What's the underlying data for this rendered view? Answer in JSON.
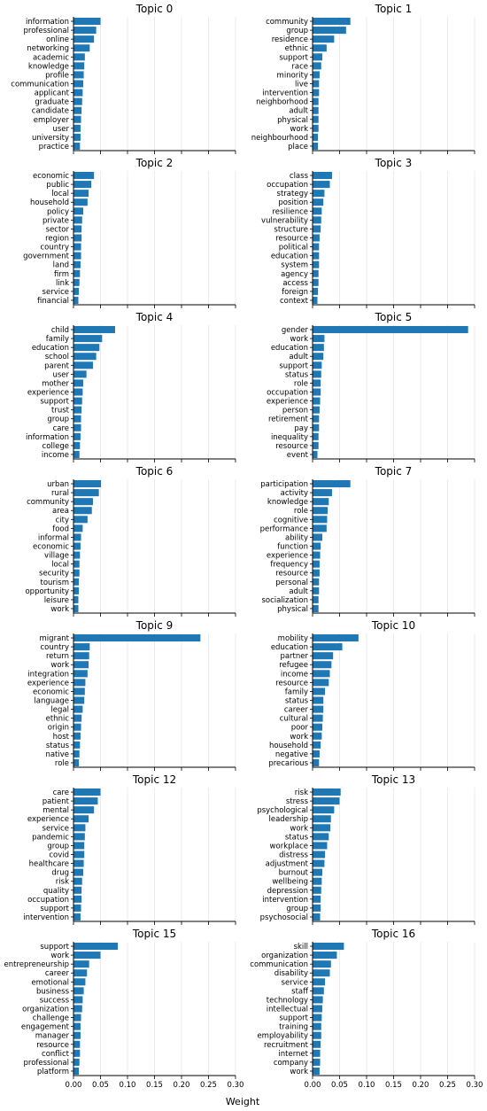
{
  "figure": {
    "xlabel": "Weight"
  },
  "chart_data": [
    {
      "type": "bar",
      "orientation": "horizontal",
      "title": "Topic 0",
      "xlim": [
        0,
        0.3
      ],
      "xticks": [
        0,
        0.05,
        0.1,
        0.15,
        0.2,
        0.25,
        0.3
      ],
      "grid": "x",
      "categories": [
        "information",
        "professional",
        "online",
        "networking",
        "academic",
        "knowledge",
        "profile",
        "communication",
        "applicant",
        "graduate",
        "candidate",
        "employer",
        "user",
        "university",
        "practice"
      ],
      "values": [
        0.05,
        0.042,
        0.038,
        0.03,
        0.021,
        0.02,
        0.019,
        0.018,
        0.017,
        0.016,
        0.015,
        0.014,
        0.013,
        0.013,
        0.012
      ]
    },
    {
      "type": "bar",
      "orientation": "horizontal",
      "title": "Topic 1",
      "xlim": [
        0,
        0.3
      ],
      "xticks": [
        0,
        0.05,
        0.1,
        0.15,
        0.2,
        0.25,
        0.3
      ],
      "grid": "x",
      "categories": [
        "community",
        "group",
        "residence",
        "ethnic",
        "support",
        "race",
        "minority",
        "live",
        "intervention",
        "neighborhood",
        "adult",
        "physical",
        "work",
        "neighbourhood",
        "place"
      ],
      "values": [
        0.07,
        0.062,
        0.04,
        0.026,
        0.018,
        0.016,
        0.013,
        0.012,
        0.012,
        0.011,
        0.011,
        0.011,
        0.011,
        0.01,
        0.01
      ]
    },
    {
      "type": "bar",
      "orientation": "horizontal",
      "title": "Topic 2",
      "xlim": [
        0,
        0.3
      ],
      "xticks": [
        0,
        0.05,
        0.1,
        0.15,
        0.2,
        0.25,
        0.3
      ],
      "grid": "x",
      "categories": [
        "economic",
        "public",
        "local",
        "household",
        "policy",
        "private",
        "sector",
        "region",
        "country",
        "government",
        "land",
        "firm",
        "link",
        "service",
        "financial"
      ],
      "values": [
        0.038,
        0.033,
        0.028,
        0.026,
        0.018,
        0.016,
        0.015,
        0.015,
        0.014,
        0.014,
        0.013,
        0.012,
        0.011,
        0.01,
        0.009
      ]
    },
    {
      "type": "bar",
      "orientation": "horizontal",
      "title": "Topic 3",
      "xlim": [
        0,
        0.3
      ],
      "xticks": [
        0,
        0.05,
        0.1,
        0.15,
        0.2,
        0.25,
        0.3
      ],
      "grid": "x",
      "categories": [
        "class",
        "occupation",
        "strategy",
        "position",
        "resilience",
        "vulnerability",
        "structure",
        "resource",
        "political",
        "education",
        "system",
        "agency",
        "access",
        "foreign",
        "context"
      ],
      "values": [
        0.036,
        0.032,
        0.022,
        0.02,
        0.017,
        0.016,
        0.015,
        0.013,
        0.012,
        0.012,
        0.012,
        0.011,
        0.011,
        0.01,
        0.009
      ]
    },
    {
      "type": "bar",
      "orientation": "horizontal",
      "title": "Topic 4",
      "xlim": [
        0,
        0.3
      ],
      "xticks": [
        0,
        0.05,
        0.1,
        0.15,
        0.2,
        0.25,
        0.3
      ],
      "grid": "x",
      "categories": [
        "child",
        "family",
        "education",
        "school",
        "parent",
        "user",
        "mother",
        "experience",
        "support",
        "trust",
        "group",
        "care",
        "information",
        "college",
        "income"
      ],
      "values": [
        0.077,
        0.053,
        0.048,
        0.042,
        0.036,
        0.024,
        0.018,
        0.017,
        0.016,
        0.015,
        0.014,
        0.014,
        0.013,
        0.012,
        0.011
      ]
    },
    {
      "type": "bar",
      "orientation": "horizontal",
      "title": "Topic 5",
      "xlim": [
        0,
        0.3
      ],
      "xticks": [
        0,
        0.05,
        0.1,
        0.15,
        0.2,
        0.25,
        0.3
      ],
      "grid": "x",
      "categories": [
        "gender",
        "work",
        "education",
        "adult",
        "support",
        "status",
        "role",
        "occupation",
        "experience",
        "person",
        "retirement",
        "pay",
        "inequality",
        "resource",
        "event"
      ],
      "values": [
        0.288,
        0.022,
        0.021,
        0.02,
        0.017,
        0.016,
        0.015,
        0.015,
        0.014,
        0.013,
        0.012,
        0.012,
        0.011,
        0.011,
        0.009
      ]
    },
    {
      "type": "bar",
      "orientation": "horizontal",
      "title": "Topic 6",
      "xlim": [
        0,
        0.3
      ],
      "xticks": [
        0,
        0.05,
        0.1,
        0.15,
        0.2,
        0.25,
        0.3
      ],
      "grid": "x",
      "categories": [
        "urban",
        "rural",
        "community",
        "area",
        "city",
        "food",
        "informal",
        "economic",
        "village",
        "local",
        "security",
        "tourism",
        "opportunity",
        "leisure",
        "work"
      ],
      "values": [
        0.051,
        0.047,
        0.036,
        0.034,
        0.026,
        0.017,
        0.014,
        0.013,
        0.012,
        0.011,
        0.011,
        0.01,
        0.01,
        0.009,
        0.009
      ]
    },
    {
      "type": "bar",
      "orientation": "horizontal",
      "title": "Topic 7",
      "xlim": [
        0,
        0.3
      ],
      "xticks": [
        0,
        0.05,
        0.1,
        0.15,
        0.2,
        0.25,
        0.3
      ],
      "grid": "x",
      "categories": [
        "participation",
        "activity",
        "knowledge",
        "role",
        "cognitive",
        "performance",
        "ability",
        "function",
        "experience",
        "frequency",
        "resource",
        "personal",
        "adult",
        "socialization",
        "physical"
      ],
      "values": [
        0.07,
        0.036,
        0.03,
        0.028,
        0.027,
        0.026,
        0.018,
        0.015,
        0.014,
        0.013,
        0.013,
        0.012,
        0.012,
        0.011,
        0.011
      ]
    },
    {
      "type": "bar",
      "orientation": "horizontal",
      "title": "Topic 9",
      "xlim": [
        0,
        0.3
      ],
      "xticks": [
        0,
        0.05,
        0.1,
        0.15,
        0.2,
        0.25,
        0.3
      ],
      "grid": "x",
      "categories": [
        "migrant",
        "country",
        "return",
        "work",
        "integration",
        "experience",
        "economic",
        "language",
        "legal",
        "ethnic",
        "origin",
        "host",
        "status",
        "native",
        "role"
      ],
      "values": [
        0.235,
        0.03,
        0.029,
        0.028,
        0.026,
        0.022,
        0.021,
        0.02,
        0.017,
        0.015,
        0.014,
        0.013,
        0.012,
        0.011,
        0.01
      ]
    },
    {
      "type": "bar",
      "orientation": "horizontal",
      "title": "Topic 10",
      "xlim": [
        0,
        0.3
      ],
      "xticks": [
        0,
        0.05,
        0.1,
        0.15,
        0.2,
        0.25,
        0.3
      ],
      "grid": "x",
      "categories": [
        "mobility",
        "education",
        "partner",
        "refugee",
        "income",
        "resource",
        "family",
        "status",
        "career",
        "cultural",
        "poor",
        "work",
        "household",
        "negative",
        "precarious"
      ],
      "values": [
        0.085,
        0.055,
        0.038,
        0.035,
        0.032,
        0.03,
        0.023,
        0.02,
        0.02,
        0.019,
        0.018,
        0.017,
        0.015,
        0.013,
        0.012
      ]
    },
    {
      "type": "bar",
      "orientation": "horizontal",
      "title": "Topic 12",
      "xlim": [
        0,
        0.3
      ],
      "xticks": [
        0,
        0.05,
        0.1,
        0.15,
        0.2,
        0.25,
        0.3
      ],
      "grid": "x",
      "categories": [
        "care",
        "patient",
        "mental",
        "experience",
        "service",
        "pandemic",
        "group",
        "covid",
        "healthcare",
        "drug",
        "risk",
        "quality",
        "occupation",
        "support",
        "intervention"
      ],
      "values": [
        0.05,
        0.045,
        0.038,
        0.028,
        0.022,
        0.021,
        0.02,
        0.02,
        0.019,
        0.018,
        0.016,
        0.015,
        0.015,
        0.014,
        0.013
      ]
    },
    {
      "type": "bar",
      "orientation": "horizontal",
      "title": "Topic 13",
      "xlim": [
        0,
        0.3
      ],
      "xticks": [
        0,
        0.05,
        0.1,
        0.15,
        0.2,
        0.25,
        0.3
      ],
      "grid": "x",
      "categories": [
        "risk",
        "stress",
        "psychological",
        "leadership",
        "work",
        "status",
        "workplace",
        "distress",
        "adjustment",
        "burnout",
        "wellbeing",
        "depression",
        "intervention",
        "group",
        "psychosocial"
      ],
      "values": [
        0.052,
        0.05,
        0.04,
        0.034,
        0.033,
        0.03,
        0.027,
        0.023,
        0.022,
        0.018,
        0.017,
        0.016,
        0.015,
        0.015,
        0.014
      ]
    },
    {
      "type": "bar",
      "orientation": "horizontal",
      "title": "Topic 15",
      "xlim": [
        0,
        0.3
      ],
      "xticks": [
        0,
        0.05,
        0.1,
        0.15,
        0.2,
        0.25,
        0.3
      ],
      "grid": "x",
      "categories": [
        "support",
        "work",
        "entrepreneurship",
        "career",
        "emotional",
        "business",
        "success",
        "organization",
        "challenge",
        "engagement",
        "manager",
        "resource",
        "conflict",
        "professional",
        "platform"
      ],
      "values": [
        0.082,
        0.05,
        0.029,
        0.025,
        0.022,
        0.019,
        0.017,
        0.016,
        0.014,
        0.013,
        0.013,
        0.012,
        0.012,
        0.011,
        0.01
      ]
    },
    {
      "type": "bar",
      "orientation": "horizontal",
      "title": "Topic 16",
      "xlim": [
        0,
        0.3
      ],
      "xticks": [
        0,
        0.05,
        0.1,
        0.15,
        0.2,
        0.25,
        0.3
      ],
      "grid": "x",
      "categories": [
        "skill",
        "organization",
        "communication",
        "disability",
        "service",
        "staff",
        "technology",
        "intellectual",
        "support",
        "training",
        "employability",
        "recruitment",
        "internet",
        "company",
        "work"
      ],
      "values": [
        0.058,
        0.045,
        0.034,
        0.032,
        0.023,
        0.021,
        0.019,
        0.018,
        0.017,
        0.016,
        0.016,
        0.015,
        0.014,
        0.014,
        0.013
      ]
    }
  ],
  "style": {
    "bar_color": "#1f77b4",
    "grid_color": "#e6e6e6",
    "axis_color": "#000000"
  }
}
